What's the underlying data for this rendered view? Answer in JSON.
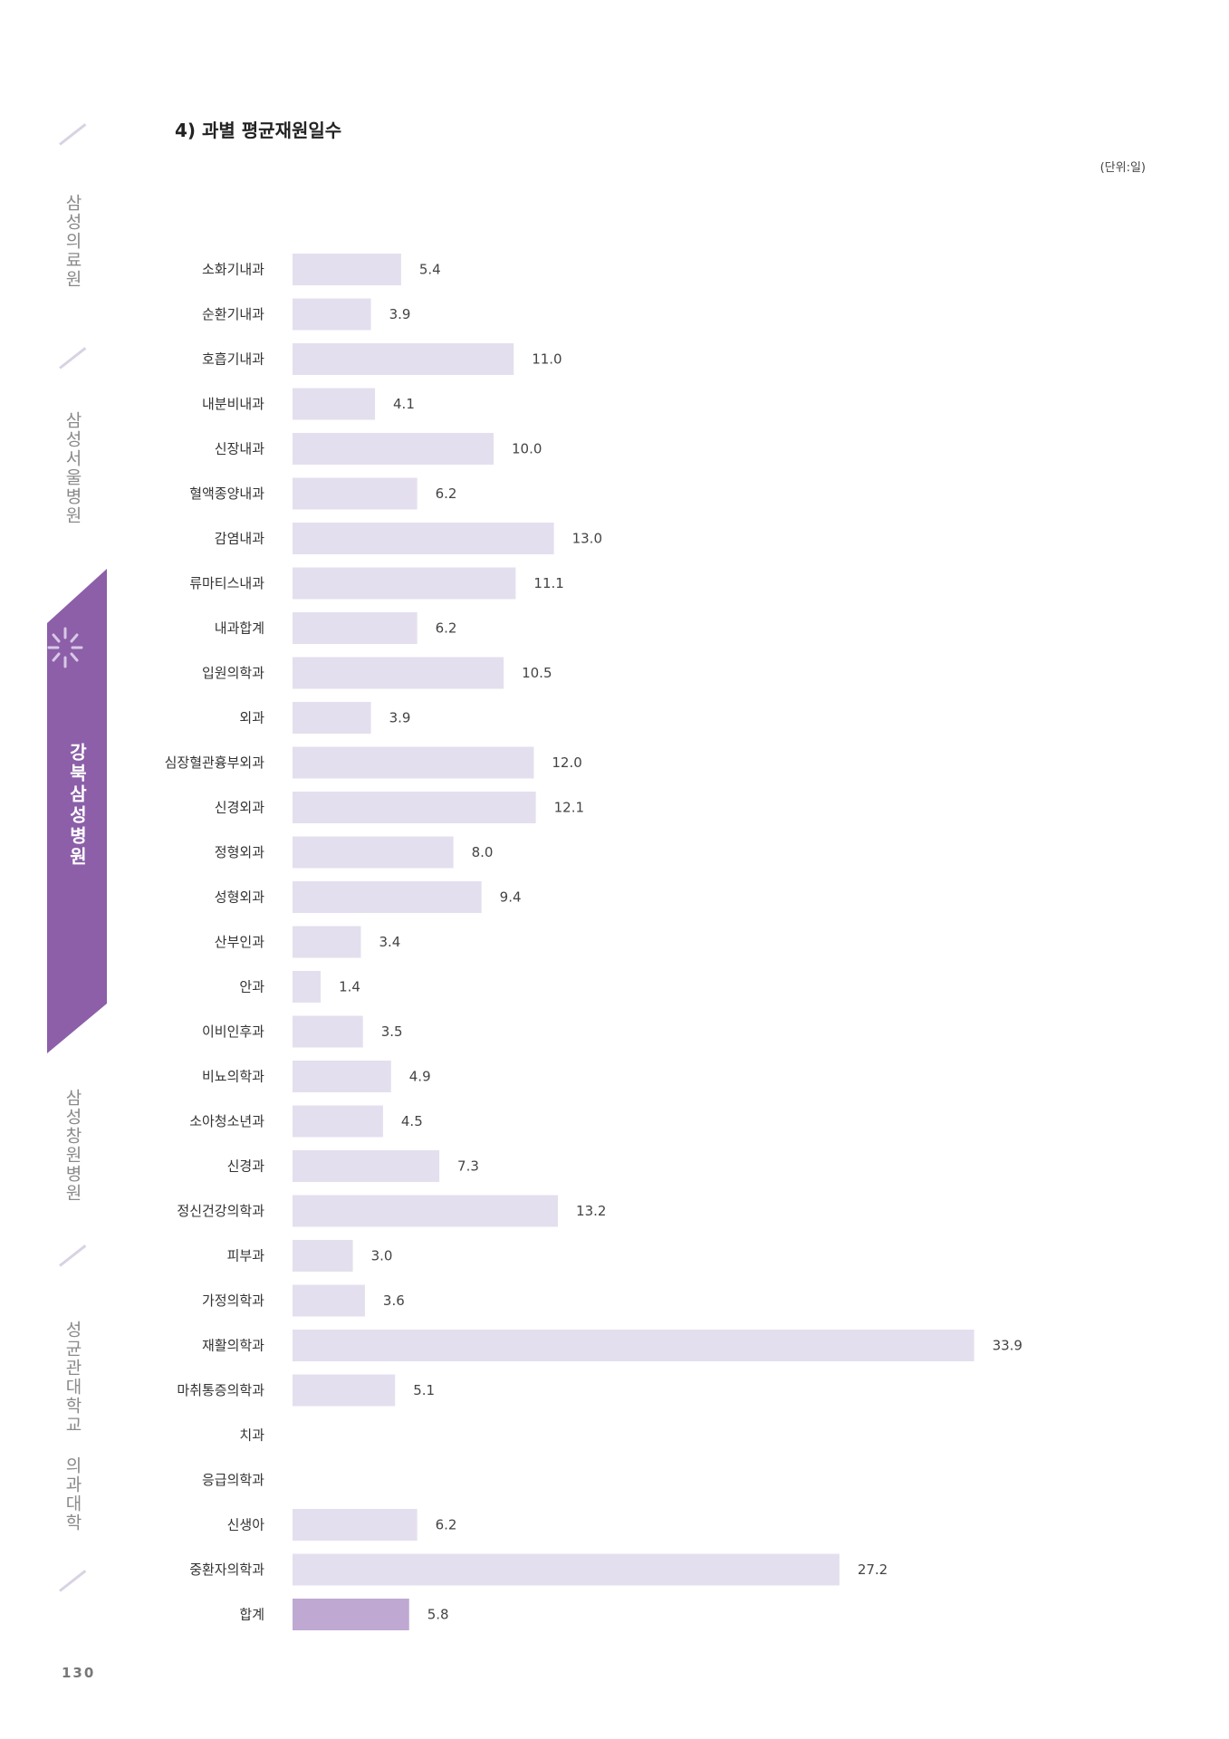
{
  "sidebar": {
    "items": [
      {
        "label": "삼성의료원"
      },
      {
        "label": "삼성서울병원"
      },
      {
        "label": "강북삼성병원",
        "active": true
      },
      {
        "label": "삼성창원병원"
      },
      {
        "label": "성균관대학교 의과대학"
      }
    ],
    "accent_color": "#8c5fa8"
  },
  "page_number": "130",
  "title": "4) 과별 평균재원일수",
  "unit": "(단위:일)",
  "chart_data": {
    "type": "bar",
    "orientation": "horizontal",
    "categories": [
      "소화기내과",
      "순환기내과",
      "호흡기내과",
      "내분비내과",
      "신장내과",
      "혈액종양내과",
      "감염내과",
      "류마티스내과",
      "내과합계",
      "입원의학과",
      "외과",
      "심장혈관흉부외과",
      "신경외과",
      "정형외과",
      "성형외과",
      "산부인과",
      "안과",
      "이비인후과",
      "비뇨의학과",
      "소아청소년과",
      "신경과",
      "정신건강의학과",
      "피부과",
      "가정의학과",
      "재활의학과",
      "마취통증의학과",
      "치과",
      "응급의학과",
      "신생아",
      "중환자의학과",
      "합계"
    ],
    "values": [
      5.4,
      3.9,
      11.0,
      4.1,
      10.0,
      6.2,
      13.0,
      11.1,
      6.2,
      10.5,
      3.9,
      12.0,
      12.1,
      8.0,
      9.4,
      3.4,
      1.4,
      3.5,
      4.9,
      4.5,
      7.3,
      13.2,
      3.0,
      3.6,
      33.9,
      5.1,
      null,
      null,
      6.2,
      27.2,
      5.8
    ],
    "value_labels": [
      "5.4",
      "3.9",
      "11.0",
      "4.1",
      "10.0",
      "6.2",
      "13.0",
      "11.1",
      "6.2",
      "10.5",
      "3.9",
      "12.0",
      "12.1",
      "8.0",
      "9.4",
      "3.4",
      "1.4",
      "3.5",
      "4.9",
      "4.5",
      "7.3",
      "13.2",
      "3.0",
      "3.6",
      "33.9",
      "5.1",
      "",
      "",
      "6.2",
      "27.2",
      "5.8"
    ],
    "xlim": [
      0,
      36
    ],
    "grid": false,
    "bar_color": "#e4dfee",
    "total_bar_color": "#bfa9d2"
  }
}
